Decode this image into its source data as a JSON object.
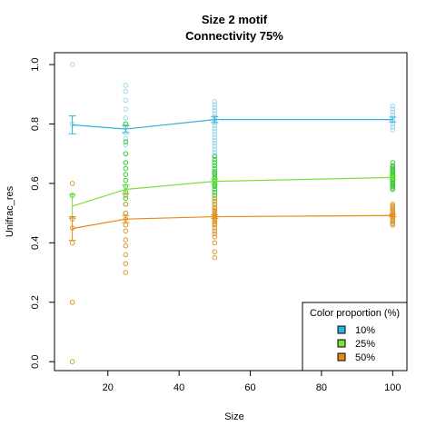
{
  "chart_data": {
    "type": "scatter",
    "title": "Size 2 motif",
    "subtitle": "Connectivity 75%",
    "xlabel": "Size",
    "ylabel": "Unifrac_res",
    "xlim": [
      5,
      104
    ],
    "ylim": [
      -0.03,
      1.04
    ],
    "xticks": [
      "20",
      "40",
      "60",
      "80",
      "100"
    ],
    "xtick_values": [
      20,
      40,
      60,
      80,
      100
    ],
    "yticks": [
      "0.0",
      "0.2",
      "0.4",
      "0.6",
      "0.8",
      "1.0"
    ],
    "ytick_values": [
      0.0,
      0.2,
      0.4,
      0.6,
      0.8,
      1.0
    ],
    "grid": false,
    "legend": {
      "title": "Color proportion (%)",
      "placement": "bottom-right",
      "entries": [
        "10%",
        "25%",
        "50%"
      ]
    },
    "series": [
      {
        "name": "10%",
        "color": "#2BB5DA",
        "point_color": "#9FD6EC",
        "x": [
          10,
          25,
          50,
          100
        ],
        "mean": [
          0.797,
          0.783,
          0.815,
          0.815
        ],
        "err": [
          0.03,
          0.012,
          0.01,
          0.008
        ],
        "points": [
          [
            10,
            1.0
          ],
          [
            10,
            0.8
          ],
          [
            25,
            0.93
          ],
          [
            25,
            0.91
          ],
          [
            25,
            0.88
          ],
          [
            25,
            0.85
          ],
          [
            25,
            0.82
          ],
          [
            25,
            0.8
          ],
          [
            25,
            0.79
          ],
          [
            25,
            0.77
          ],
          [
            25,
            0.75
          ],
          [
            25,
            0.73
          ],
          [
            50,
            0.875
          ],
          [
            50,
            0.865
          ],
          [
            50,
            0.855
          ],
          [
            50,
            0.845
          ],
          [
            50,
            0.835
          ],
          [
            50,
            0.825
          ],
          [
            50,
            0.815
          ],
          [
            50,
            0.805
          ],
          [
            50,
            0.795
          ],
          [
            50,
            0.785
          ],
          [
            50,
            0.775
          ],
          [
            50,
            0.765
          ],
          [
            50,
            0.755
          ],
          [
            50,
            0.745
          ],
          [
            50,
            0.735
          ],
          [
            50,
            0.725
          ],
          [
            50,
            0.715
          ],
          [
            50,
            0.705
          ],
          [
            50,
            0.695
          ],
          [
            100,
            0.86
          ],
          [
            100,
            0.85
          ],
          [
            100,
            0.84
          ],
          [
            100,
            0.83
          ],
          [
            100,
            0.82
          ],
          [
            100,
            0.81
          ],
          [
            100,
            0.8
          ],
          [
            100,
            0.79
          ],
          [
            100,
            0.78
          ]
        ]
      },
      {
        "name": "25%",
        "color": "#7DE03A",
        "point_color": "#33CC33",
        "x": [
          10,
          25,
          50,
          100
        ],
        "mean": [
          0.523,
          0.58,
          0.607,
          0.62
        ],
        "err": [
          0.04,
          0.015,
          0.008,
          0.006
        ],
        "points": [
          [
            10,
            0.56
          ],
          [
            25,
            0.8
          ],
          [
            25,
            0.74
          ],
          [
            25,
            0.7
          ],
          [
            25,
            0.67
          ],
          [
            25,
            0.65
          ],
          [
            25,
            0.63
          ],
          [
            25,
            0.61
          ],
          [
            25,
            0.59
          ],
          [
            25,
            0.57
          ],
          [
            25,
            0.55
          ],
          [
            25,
            0.53
          ],
          [
            25,
            0.5
          ],
          [
            50,
            0.69
          ],
          [
            50,
            0.68
          ],
          [
            50,
            0.67
          ],
          [
            50,
            0.66
          ],
          [
            50,
            0.65
          ],
          [
            50,
            0.64
          ],
          [
            50,
            0.635
          ],
          [
            50,
            0.63
          ],
          [
            50,
            0.62
          ],
          [
            50,
            0.615
          ],
          [
            50,
            0.61
          ],
          [
            50,
            0.6
          ],
          [
            50,
            0.595
          ],
          [
            50,
            0.59
          ],
          [
            50,
            0.58
          ],
          [
            50,
            0.57
          ],
          [
            50,
            0.56
          ],
          [
            50,
            0.55
          ],
          [
            50,
            0.54
          ],
          [
            50,
            0.53
          ],
          [
            100,
            0.67
          ],
          [
            100,
            0.66
          ],
          [
            100,
            0.655
          ],
          [
            100,
            0.65
          ],
          [
            100,
            0.645
          ],
          [
            100,
            0.64
          ],
          [
            100,
            0.635
          ],
          [
            100,
            0.63
          ],
          [
            100,
            0.625
          ],
          [
            100,
            0.62
          ],
          [
            100,
            0.615
          ],
          [
            100,
            0.61
          ],
          [
            100,
            0.605
          ],
          [
            100,
            0.6
          ],
          [
            100,
            0.595
          ],
          [
            100,
            0.59
          ],
          [
            100,
            0.585
          ],
          [
            100,
            0.58
          ]
        ]
      },
      {
        "name": "50%",
        "color": "#E98A14",
        "point_color": "#D99A33",
        "x": [
          10,
          25,
          50,
          100
        ],
        "mean": [
          0.448,
          0.48,
          0.488,
          0.492
        ],
        "err": [
          0.04,
          0.012,
          0.006,
          0.004
        ],
        "points": [
          [
            10,
            0.6
          ],
          [
            10,
            0.48
          ],
          [
            10,
            0.45
          ],
          [
            10,
            0.4
          ],
          [
            10,
            0.2
          ],
          [
            10,
            0.0
          ],
          [
            25,
            0.56
          ],
          [
            25,
            0.53
          ],
          [
            25,
            0.5
          ],
          [
            25,
            0.48
          ],
          [
            25,
            0.46
          ],
          [
            25,
            0.44
          ],
          [
            25,
            0.41
          ],
          [
            25,
            0.39
          ],
          [
            25,
            0.36
          ],
          [
            25,
            0.33
          ],
          [
            25,
            0.3
          ],
          [
            50,
            0.55
          ],
          [
            50,
            0.54
          ],
          [
            50,
            0.53
          ],
          [
            50,
            0.52
          ],
          [
            50,
            0.515
          ],
          [
            50,
            0.51
          ],
          [
            50,
            0.505
          ],
          [
            50,
            0.5
          ],
          [
            50,
            0.495
          ],
          [
            50,
            0.49
          ],
          [
            50,
            0.485
          ],
          [
            50,
            0.48
          ],
          [
            50,
            0.475
          ],
          [
            50,
            0.47
          ],
          [
            50,
            0.465
          ],
          [
            50,
            0.46
          ],
          [
            50,
            0.45
          ],
          [
            50,
            0.44
          ],
          [
            50,
            0.43
          ],
          [
            50,
            0.42
          ],
          [
            50,
            0.4
          ],
          [
            50,
            0.37
          ],
          [
            50,
            0.35
          ],
          [
            100,
            0.53
          ],
          [
            100,
            0.525
          ],
          [
            100,
            0.52
          ],
          [
            100,
            0.515
          ],
          [
            100,
            0.51
          ],
          [
            100,
            0.505
          ],
          [
            100,
            0.5
          ],
          [
            100,
            0.495
          ],
          [
            100,
            0.49
          ],
          [
            100,
            0.485
          ],
          [
            100,
            0.48
          ],
          [
            100,
            0.475
          ],
          [
            100,
            0.47
          ],
          [
            100,
            0.465
          ],
          [
            100,
            0.46
          ]
        ]
      }
    ]
  }
}
